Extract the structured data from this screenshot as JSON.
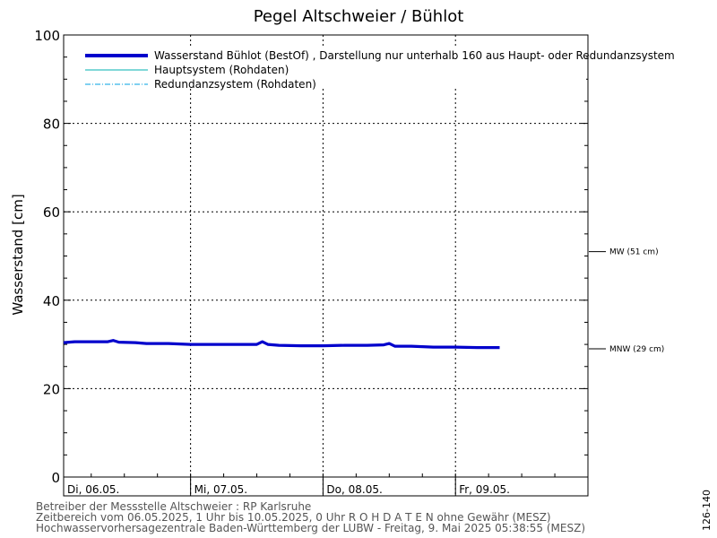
{
  "chart_data": {
    "type": "line",
    "title": "Pegel Altschweier / Bühlot",
    "ylabel": "Wasserstand [cm]",
    "xlabel": "",
    "ylim": [
      0,
      100
    ],
    "yticks": [
      0,
      20,
      40,
      60,
      80,
      100
    ],
    "xlim": [
      "2025-05-06 01:00",
      "2025-05-10 00:00"
    ],
    "x_ticks": [
      {
        "x": "2025-05-06 00:00",
        "label": "Di, 06.05."
      },
      {
        "x": "2025-05-07 00:00",
        "label": "Mi, 07.05."
      },
      {
        "x": "2025-05-08 00:00",
        "label": "Do, 08.05."
      },
      {
        "x": "2025-05-09 00:00",
        "label": "Fr, 09.05."
      }
    ],
    "grid": true,
    "legend_position": "top-left",
    "legend": [
      {
        "label": "Wasserstand Bühlot (BestOf) , Darstellung nur unterhalb 160  aus Haupt- oder Redundanzsystem",
        "color": "#0000cc",
        "style": "solid-thick"
      },
      {
        "label": "Hauptsystem (Rohdaten)",
        "color": "#00b0b0",
        "style": "solid"
      },
      {
        "label": "Redundanzsystem (Rohdaten)",
        "color": "#00a0e0",
        "style": "dashdot"
      }
    ],
    "reference_lines": [
      {
        "label": "MW (51 cm)",
        "value": 51
      },
      {
        "label": "MNW (29 cm)",
        "value": 29
      }
    ],
    "series": [
      {
        "name": "Wasserstand Bühlot (BestOf) , Darstellung nur unterhalb 160  aus Haupt- oder Redundanzsystem",
        "color": "#0000cc",
        "points": [
          [
            "2025-05-06 01:00",
            30.4
          ],
          [
            "2025-05-06 03:00",
            30.6
          ],
          [
            "2025-05-06 06:00",
            30.6
          ],
          [
            "2025-05-06 09:00",
            30.6
          ],
          [
            "2025-05-06 10:00",
            30.9
          ],
          [
            "2025-05-06 11:00",
            30.5
          ],
          [
            "2025-05-06 14:00",
            30.4
          ],
          [
            "2025-05-06 16:00",
            30.2
          ],
          [
            "2025-05-06 20:00",
            30.2
          ],
          [
            "2025-05-07 00:00",
            30.0
          ],
          [
            "2025-05-07 04:00",
            30.0
          ],
          [
            "2025-05-07 08:00",
            30.0
          ],
          [
            "2025-05-07 12:00",
            30.0
          ],
          [
            "2025-05-07 13:00",
            30.6
          ],
          [
            "2025-05-07 14:00",
            30.0
          ],
          [
            "2025-05-07 16:00",
            29.8
          ],
          [
            "2025-05-07 20:00",
            29.7
          ],
          [
            "2025-05-08 00:00",
            29.7
          ],
          [
            "2025-05-08 04:00",
            29.8
          ],
          [
            "2025-05-08 08:00",
            29.8
          ],
          [
            "2025-05-08 11:00",
            29.9
          ],
          [
            "2025-05-08 12:00",
            30.2
          ],
          [
            "2025-05-08 13:00",
            29.6
          ],
          [
            "2025-05-08 16:00",
            29.6
          ],
          [
            "2025-05-08 20:00",
            29.4
          ],
          [
            "2025-05-09 00:00",
            29.4
          ],
          [
            "2025-05-09 04:00",
            29.3
          ],
          [
            "2025-05-09 08:00",
            29.3
          ]
        ]
      },
      {
        "name": "Hauptsystem (Rohdaten)",
        "color": "#00b0b0",
        "points": [
          [
            "2025-05-06 01:00",
            30.3
          ],
          [
            "2025-05-06 03:00",
            30.5
          ],
          [
            "2025-05-06 06:00",
            30.5
          ],
          [
            "2025-05-06 09:00",
            30.5
          ],
          [
            "2025-05-06 10:00",
            30.8
          ],
          [
            "2025-05-06 11:00",
            30.4
          ],
          [
            "2025-05-06 14:00",
            30.3
          ],
          [
            "2025-05-06 16:00",
            30.1
          ],
          [
            "2025-05-06 20:00",
            30.1
          ],
          [
            "2025-05-07 00:00",
            29.9
          ],
          [
            "2025-05-07 04:00",
            29.9
          ],
          [
            "2025-05-07 08:00",
            29.9
          ],
          [
            "2025-05-07 12:00",
            29.9
          ],
          [
            "2025-05-07 13:00",
            30.5
          ],
          [
            "2025-05-07 14:00",
            29.9
          ],
          [
            "2025-05-07 16:00",
            29.7
          ],
          [
            "2025-05-07 20:00",
            29.6
          ],
          [
            "2025-05-08 00:00",
            29.6
          ],
          [
            "2025-05-08 04:00",
            29.7
          ],
          [
            "2025-05-08 08:00",
            29.7
          ],
          [
            "2025-05-08 11:00",
            29.8
          ],
          [
            "2025-05-08 12:00",
            30.1
          ],
          [
            "2025-05-08 13:00",
            29.5
          ],
          [
            "2025-05-08 16:00",
            29.5
          ],
          [
            "2025-05-08 20:00",
            29.3
          ],
          [
            "2025-05-09 00:00",
            29.3
          ],
          [
            "2025-05-09 04:00",
            29.2
          ],
          [
            "2025-05-09 08:00",
            29.2
          ]
        ]
      },
      {
        "name": "Redundanzsystem (Rohdaten)",
        "color": "#00a0e0",
        "points": [
          [
            "2025-05-06 01:00",
            30.5
          ],
          [
            "2025-05-06 03:00",
            30.7
          ],
          [
            "2025-05-06 06:00",
            30.7
          ],
          [
            "2025-05-06 09:00",
            30.7
          ],
          [
            "2025-05-06 10:00",
            31.0
          ],
          [
            "2025-05-06 11:00",
            30.6
          ],
          [
            "2025-05-06 14:00",
            30.5
          ],
          [
            "2025-05-06 16:00",
            30.3
          ],
          [
            "2025-05-06 20:00",
            30.3
          ],
          [
            "2025-05-07 00:00",
            30.1
          ],
          [
            "2025-05-07 04:00",
            30.1
          ],
          [
            "2025-05-07 08:00",
            30.1
          ],
          [
            "2025-05-07 12:00",
            30.1
          ],
          [
            "2025-05-07 13:00",
            30.7
          ],
          [
            "2025-05-07 14:00",
            30.1
          ],
          [
            "2025-05-07 16:00",
            29.9
          ],
          [
            "2025-05-07 20:00",
            29.8
          ],
          [
            "2025-05-08 00:00",
            29.8
          ],
          [
            "2025-05-08 04:00",
            29.9
          ],
          [
            "2025-05-08 08:00",
            29.9
          ],
          [
            "2025-05-08 11:00",
            30.0
          ],
          [
            "2025-05-08 12:00",
            30.3
          ],
          [
            "2025-05-08 13:00",
            29.7
          ],
          [
            "2025-05-08 16:00",
            29.7
          ],
          [
            "2025-05-08 20:00",
            29.5
          ],
          [
            "2025-05-09 00:00",
            29.5
          ],
          [
            "2025-05-09 04:00",
            29.4
          ],
          [
            "2025-05-09 08:00",
            29.4
          ]
        ]
      }
    ]
  },
  "footer": {
    "line1": "Betreiber der Messstelle Altschweier : RP Karlsruhe",
    "line2": "Zeitbereich vom 06.05.2025, 1 Uhr bis 10.05.2025, 0 Uhr    R O H D A T E N ohne Gewähr (MESZ)",
    "line3": "Hochwasservorhersagezentrale Baden-Württemberg der LUBW - Freitag, 9. Mai 2025 05:38:55 (MESZ)"
  },
  "side_label": "126-140"
}
